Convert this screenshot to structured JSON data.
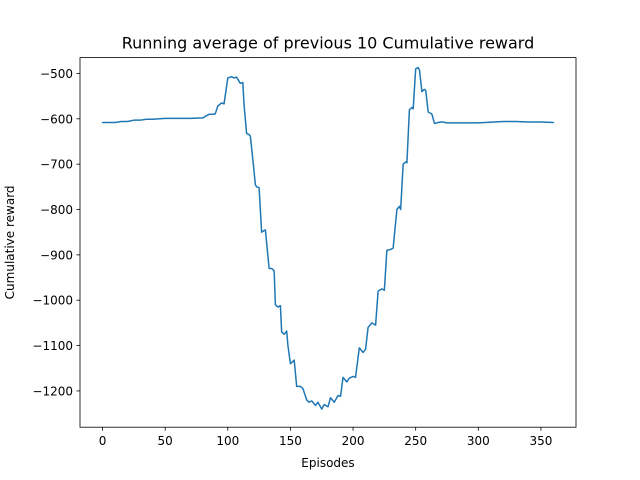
{
  "chart_data": {
    "type": "line",
    "title": "Running average of previous 10 Cumulative reward",
    "xlabel": "Episodes",
    "ylabel": "Cumulative reward",
    "xlim": [
      -18,
      378
    ],
    "ylim": [
      -1280,
      -465
    ],
    "xticks": [
      0,
      50,
      100,
      150,
      200,
      250,
      300,
      350
    ],
    "xtick_labels": [
      "0",
      "50",
      "100",
      "150",
      "200",
      "250",
      "300",
      "350"
    ],
    "yticks": [
      -1200,
      -1100,
      -1000,
      -900,
      -800,
      -700,
      -600,
      -500
    ],
    "ytick_labels": [
      "−1200",
      "−1100",
      "−1000",
      "−900",
      "−800",
      "−700",
      "−600",
      "−500"
    ],
    "grid": false,
    "series": [
      {
        "name": "Running average",
        "color": "#1f77b4",
        "x": [
          0,
          10,
          15,
          20,
          25,
          30,
          35,
          40,
          50,
          60,
          70,
          80,
          85,
          88,
          90,
          92,
          95,
          97,
          100,
          103,
          105,
          107,
          110,
          112,
          113,
          115,
          117,
          118,
          120,
          122,
          123,
          125,
          127,
          128,
          130,
          133,
          135,
          137,
          138,
          140,
          142,
          143,
          145,
          147,
          148,
          150,
          152,
          153,
          155,
          158,
          160,
          163,
          165,
          167,
          170,
          172,
          175,
          177,
          180,
          182,
          185,
          188,
          190,
          192,
          195,
          197,
          200,
          202,
          205,
          208,
          210,
          212,
          215,
          218,
          220,
          223,
          225,
          227,
          230,
          232,
          235,
          237,
          238,
          240,
          242,
          243,
          245,
          247,
          248,
          250,
          252,
          253,
          255,
          257,
          258,
          260,
          262,
          263,
          265,
          267,
          268,
          270,
          272,
          273,
          275,
          277,
          278,
          280,
          282,
          283,
          285,
          290,
          300,
          320,
          330,
          340,
          350,
          360
        ],
        "values": [
          -608,
          -608,
          -606,
          -606,
          -603,
          -603,
          -601,
          -601,
          -599,
          -599,
          -599,
          -598,
          -590,
          -590,
          -589,
          -572,
          -565,
          -567,
          -510,
          -507,
          -510,
          -508,
          -522,
          -520,
          -570,
          -632,
          -635,
          -638,
          -690,
          -745,
          -750,
          -752,
          -850,
          -848,
          -845,
          -930,
          -930,
          -935,
          -1010,
          -1015,
          -1012,
          -1070,
          -1075,
          -1068,
          -1100,
          -1140,
          -1135,
          -1132,
          -1190,
          -1190,
          -1195,
          -1220,
          -1225,
          -1222,
          -1232,
          -1225,
          -1240,
          -1230,
          -1235,
          -1215,
          -1225,
          -1210,
          -1212,
          -1170,
          -1180,
          -1172,
          -1168,
          -1170,
          -1105,
          -1115,
          -1108,
          -1060,
          -1050,
          -1055,
          -980,
          -975,
          -978,
          -890,
          -888,
          -885,
          -800,
          -793,
          -800,
          -700,
          -695,
          -697,
          -580,
          -575,
          -578,
          -490,
          -487,
          -492,
          -540,
          -535,
          -537,
          -585,
          -588,
          -590,
          -610,
          -609,
          -608,
          -607,
          -607,
          -608,
          -609,
          -609,
          -609,
          -609,
          -609,
          -609,
          -609,
          -609,
          -609,
          -606,
          -606,
          -607,
          -607,
          -608
        ]
      }
    ]
  }
}
